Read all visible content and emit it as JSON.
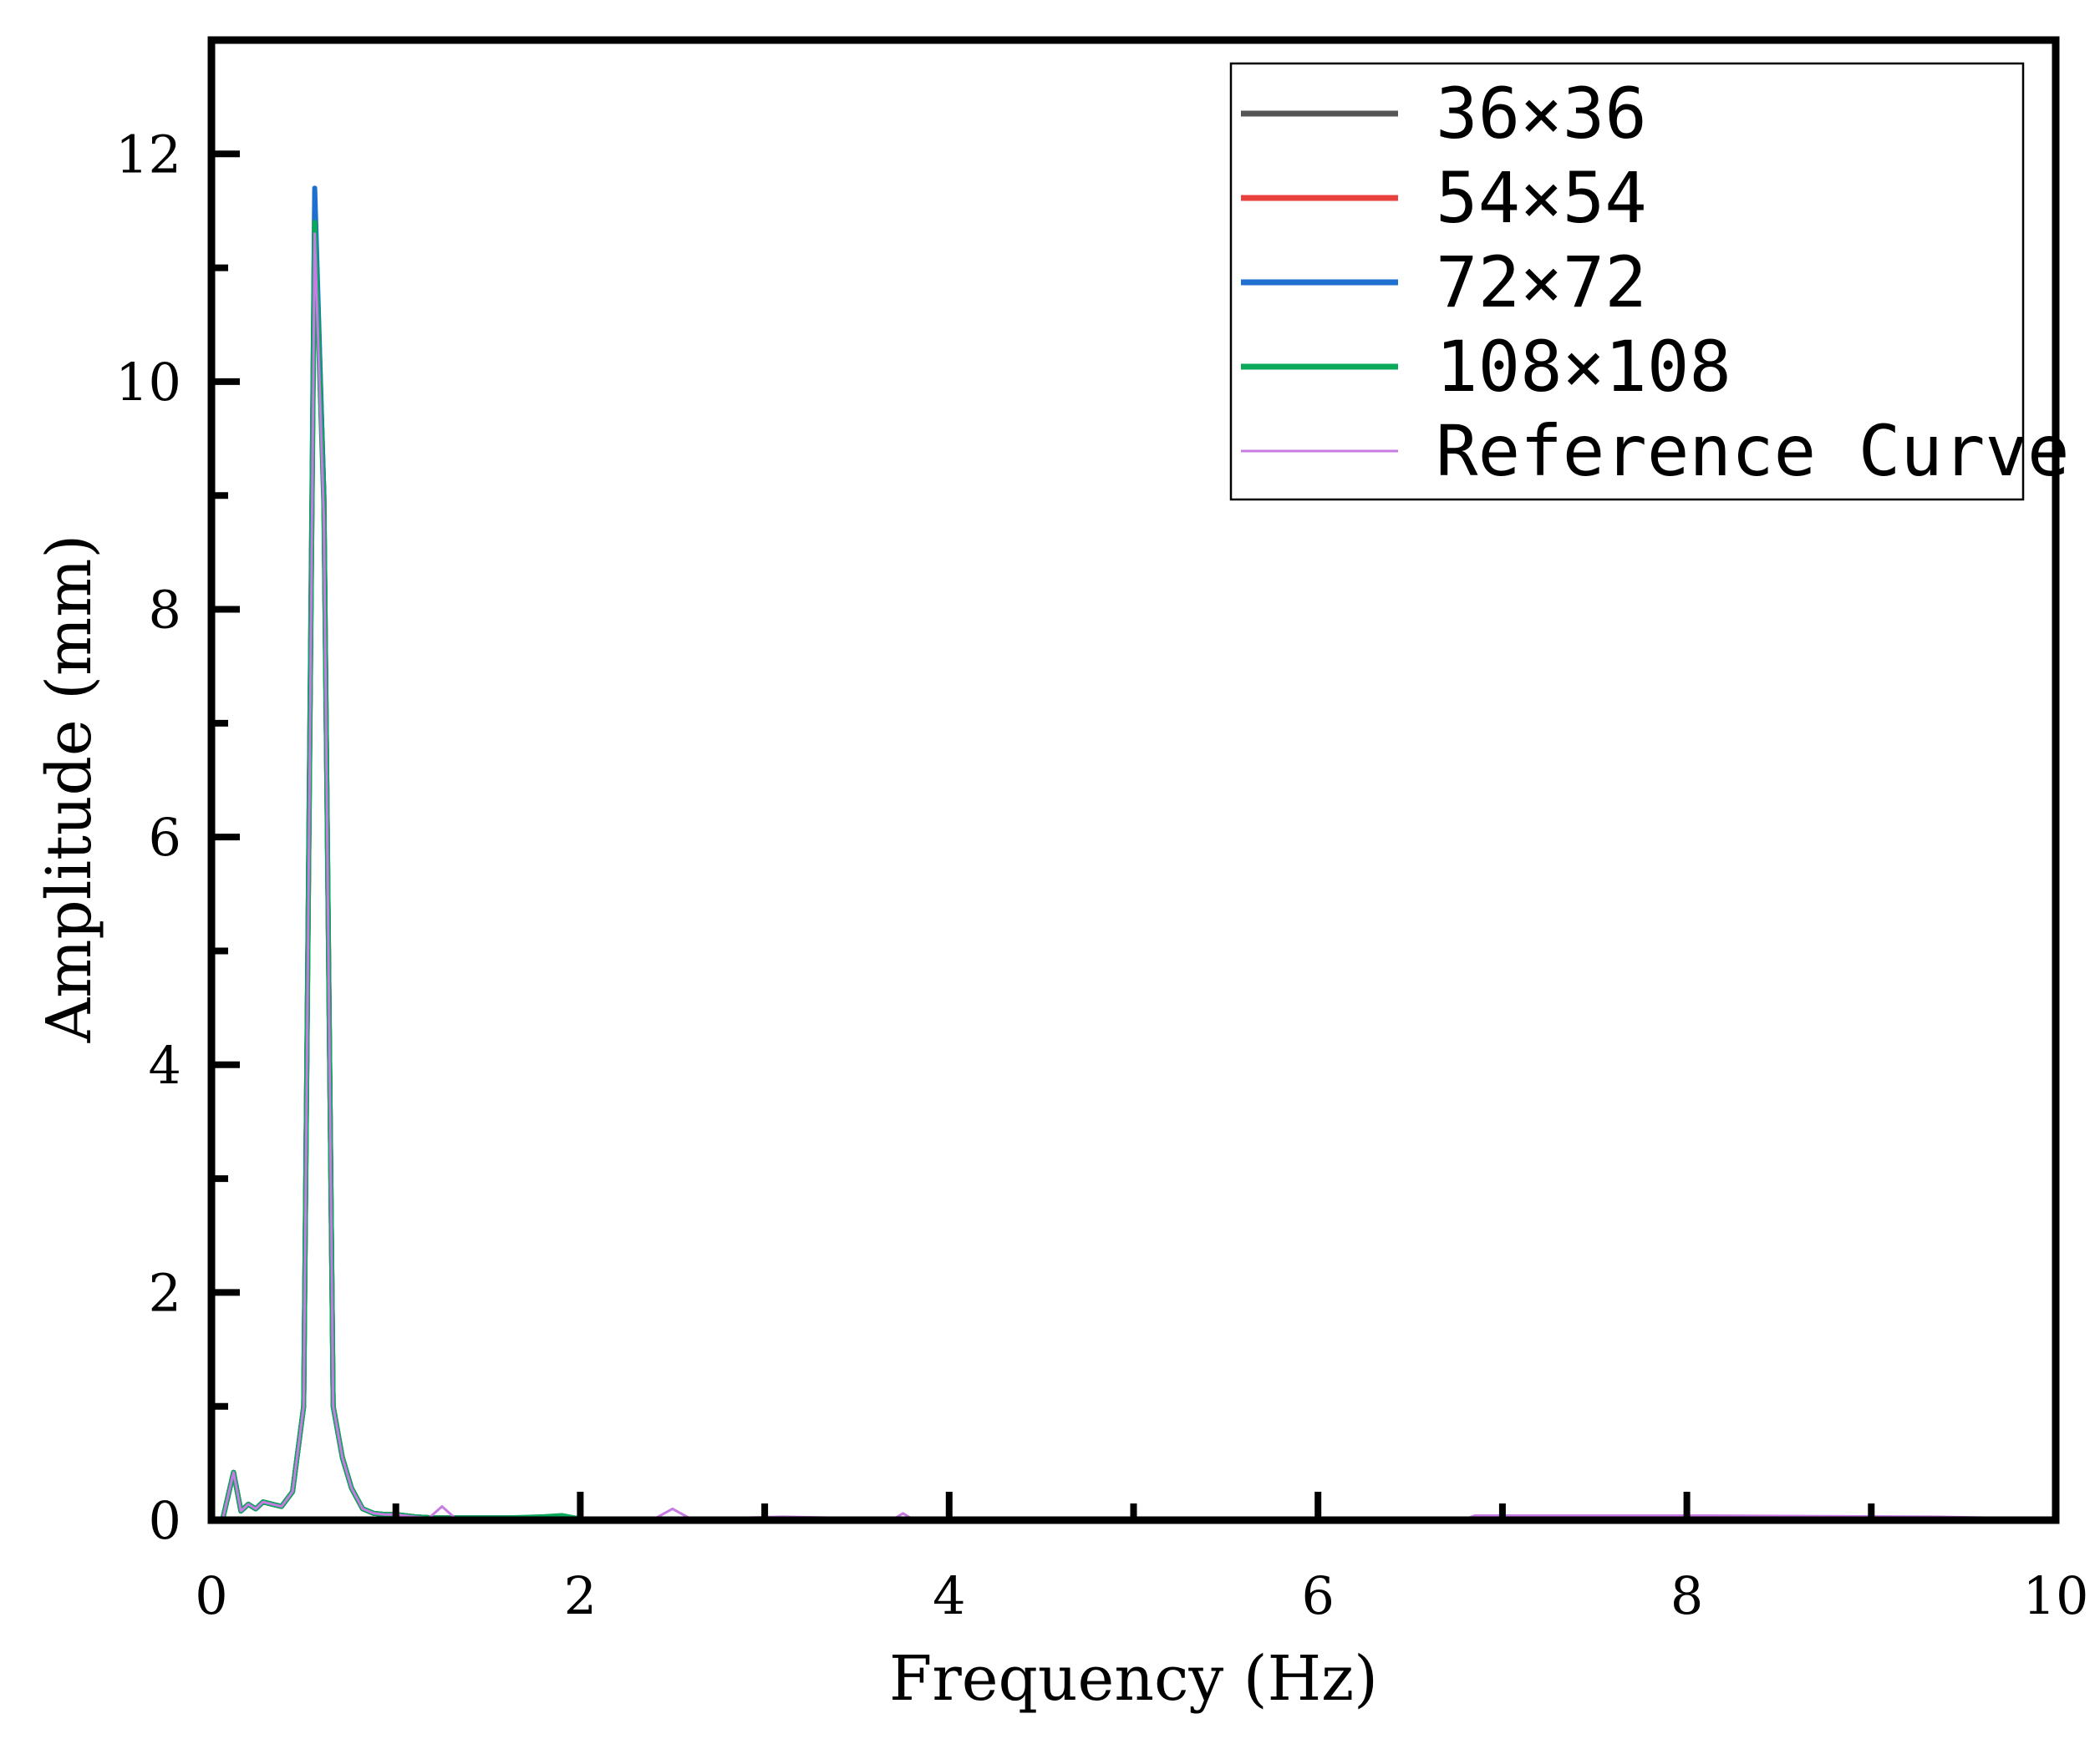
{
  "chart_data": {
    "type": "line",
    "title": "",
    "xlabel": "Frequency (Hz)",
    "ylabel": "Amplitude (mm)",
    "xlim": [
      0,
      10
    ],
    "ylim": [
      0,
      13
    ],
    "xticks": [
      "0",
      "2",
      "4",
      "6",
      "8",
      "10"
    ],
    "yticks": [
      "0",
      "2",
      "4",
      "6",
      "8",
      "10",
      "12"
    ],
    "grid": false,
    "legend_position": "top-right",
    "series": [
      {
        "name": "36×36",
        "color": "#555555",
        "x": [
          0.0,
          0.06,
          0.12,
          0.16,
          0.2,
          0.24,
          0.28,
          0.33,
          0.38,
          0.44,
          0.5,
          0.56,
          0.61,
          0.66,
          0.71,
          0.76,
          0.82,
          0.88,
          0.94,
          1.0,
          1.1,
          1.2,
          1.4,
          1.6,
          1.8,
          2.0,
          2.5,
          3.0,
          4.0,
          5.0,
          6.0,
          7.0,
          8.0,
          9.0,
          10.0
        ],
        "y": [
          0.0,
          0.0,
          0.42,
          0.08,
          0.14,
          0.1,
          0.16,
          0.14,
          0.12,
          0.25,
          1.0,
          11.5,
          9.0,
          1.0,
          0.55,
          0.28,
          0.1,
          0.06,
          0.05,
          0.05,
          0.03,
          0.02,
          0.02,
          0.02,
          0.02,
          0.01,
          0.01,
          0.01,
          0.01,
          0.01,
          0.01,
          0.01,
          0.01,
          0.01,
          0.01
        ]
      },
      {
        "name": "54×54",
        "color": "#e8413e",
        "x": [
          0.0,
          0.06,
          0.12,
          0.16,
          0.2,
          0.24,
          0.28,
          0.33,
          0.38,
          0.44,
          0.5,
          0.56,
          0.61,
          0.66,
          0.71,
          0.76,
          0.82,
          0.88,
          0.94,
          1.0,
          1.1,
          1.2,
          1.4,
          1.6,
          1.8,
          2.0,
          2.5,
          3.0,
          4.0,
          5.0,
          6.0,
          7.0,
          8.0,
          9.0,
          10.0
        ],
        "y": [
          0.0,
          0.0,
          0.42,
          0.08,
          0.14,
          0.1,
          0.16,
          0.14,
          0.12,
          0.25,
          1.0,
          11.6,
          9.0,
          1.0,
          0.55,
          0.28,
          0.1,
          0.06,
          0.05,
          0.05,
          0.03,
          0.02,
          0.02,
          0.02,
          0.02,
          0.01,
          0.01,
          0.01,
          0.01,
          0.01,
          0.01,
          0.01,
          0.01,
          0.01,
          0.01
        ]
      },
      {
        "name": "72×72",
        "color": "#1f6fd1",
        "x": [
          0.0,
          0.06,
          0.12,
          0.16,
          0.2,
          0.24,
          0.28,
          0.33,
          0.38,
          0.44,
          0.5,
          0.56,
          0.61,
          0.66,
          0.71,
          0.76,
          0.82,
          0.88,
          0.94,
          1.0,
          1.1,
          1.2,
          1.4,
          1.6,
          1.8,
          2.0,
          2.5,
          3.0,
          4.0,
          5.0,
          6.0,
          7.0,
          8.0,
          9.0,
          10.0
        ],
        "y": [
          0.0,
          0.0,
          0.42,
          0.08,
          0.14,
          0.1,
          0.16,
          0.14,
          0.12,
          0.25,
          1.0,
          11.7,
          9.0,
          1.0,
          0.55,
          0.28,
          0.1,
          0.06,
          0.05,
          0.05,
          0.03,
          0.02,
          0.02,
          0.02,
          0.02,
          0.01,
          0.01,
          0.01,
          0.01,
          0.01,
          0.01,
          0.01,
          0.01,
          0.01,
          0.01
        ]
      },
      {
        "name": "108×108",
        "color": "#0aa85a",
        "x": [
          0.0,
          0.06,
          0.12,
          0.16,
          0.2,
          0.24,
          0.28,
          0.33,
          0.38,
          0.44,
          0.5,
          0.56,
          0.61,
          0.66,
          0.71,
          0.76,
          0.82,
          0.88,
          0.94,
          1.0,
          1.1,
          1.2,
          1.4,
          1.6,
          1.8,
          1.9,
          2.0,
          2.5,
          3.0,
          4.0,
          5.0,
          6.0,
          7.0,
          8.0,
          9.0,
          10.0
        ],
        "y": [
          0.0,
          0.0,
          0.42,
          0.08,
          0.14,
          0.1,
          0.16,
          0.14,
          0.12,
          0.25,
          1.0,
          11.4,
          8.9,
          1.0,
          0.55,
          0.28,
          0.1,
          0.06,
          0.05,
          0.05,
          0.03,
          0.02,
          0.02,
          0.02,
          0.03,
          0.04,
          0.01,
          0.01,
          0.01,
          0.01,
          0.01,
          0.01,
          0.01,
          0.01,
          0.01,
          0.01
        ]
      },
      {
        "name": "Reference Curve",
        "color": "#c77be3",
        "x": [
          0.0,
          0.06,
          0.12,
          0.16,
          0.2,
          0.24,
          0.28,
          0.33,
          0.38,
          0.44,
          0.5,
          0.56,
          0.61,
          0.66,
          0.71,
          0.76,
          0.82,
          0.88,
          0.94,
          1.0,
          1.1,
          1.18,
          1.25,
          1.32,
          1.5,
          1.8,
          2.0,
          2.4,
          2.5,
          2.6,
          3.1,
          3.7,
          3.75,
          3.8,
          4.3,
          5.6,
          6.8,
          6.85,
          8.1,
          9.35,
          10.0
        ],
        "y": [
          0.0,
          0.0,
          0.42,
          0.08,
          0.14,
          0.1,
          0.16,
          0.14,
          0.12,
          0.25,
          1.0,
          11.3,
          8.8,
          1.0,
          0.55,
          0.28,
          0.1,
          0.06,
          0.05,
          0.05,
          0.03,
          0.02,
          0.12,
          0.02,
          0.01,
          0.01,
          0.01,
          0.01,
          0.1,
          0.01,
          0.03,
          0.01,
          0.06,
          0.01,
          0.02,
          0.02,
          0.01,
          0.04,
          0.04,
          0.03,
          0.01
        ]
      }
    ]
  }
}
